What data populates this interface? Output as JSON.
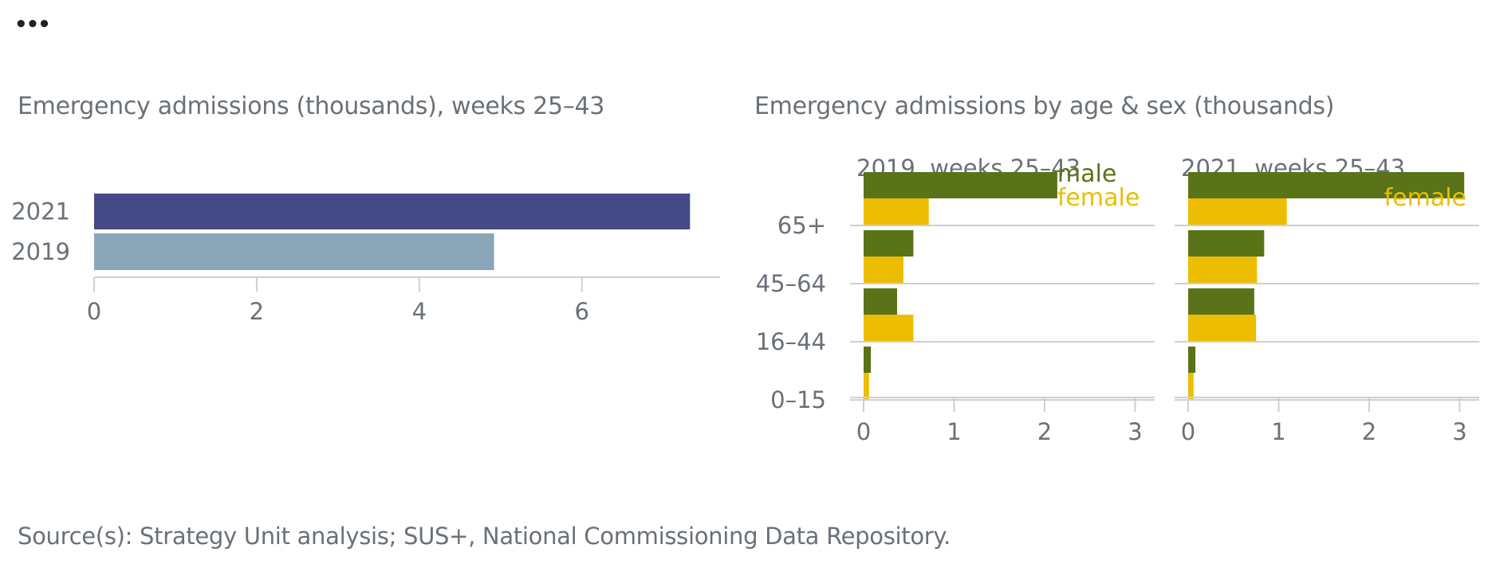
{
  "menu_label": "•••",
  "footer": {
    "source": "Source(s): Strategy Unit analysis; SUS+, National Commissioning Data Repository."
  },
  "colors": {
    "year2021": "#454a87",
    "year2019": "#8aa6b8",
    "male": "#5a7318",
    "female": "#ecbd00",
    "axis": "#cfcfcf",
    "text": "#6a7078"
  },
  "chart_data": [
    {
      "type": "bar",
      "orientation": "horizontal",
      "title": "Emergency admissions (thousands), weeks 25–43",
      "categories": [
        "2021",
        "2019"
      ],
      "values": [
        7.33,
        4.92
      ],
      "xlim": [
        0,
        7.7
      ],
      "xticks": [
        0,
        2,
        4,
        6
      ],
      "grid": false
    },
    {
      "type": "bar",
      "orientation": "horizontal",
      "title": "Emergency admissions by age & sex (thousands)",
      "categories": [
        "65+",
        "45–64",
        "16–44",
        "0–15"
      ],
      "panels": [
        {
          "title": "2019, weeks 25–43",
          "series": [
            {
              "name": "male",
              "values": [
                2.14,
                0.55,
                0.37,
                0.08
              ]
            },
            {
              "name": "female",
              "values": [
                0.72,
                0.44,
                0.55,
                0.06
              ]
            }
          ]
        },
        {
          "title": "2021, weeks 25–43",
          "series": [
            {
              "name": "male",
              "values": [
                3.05,
                0.84,
                0.73,
                0.08
              ]
            },
            {
              "name": "female",
              "values": [
                1.09,
                0.76,
                0.75,
                0.06
              ]
            }
          ]
        }
      ],
      "xlim": [
        0,
        3.2
      ],
      "xticks": [
        0,
        1,
        2,
        3
      ],
      "grid": true
    }
  ]
}
